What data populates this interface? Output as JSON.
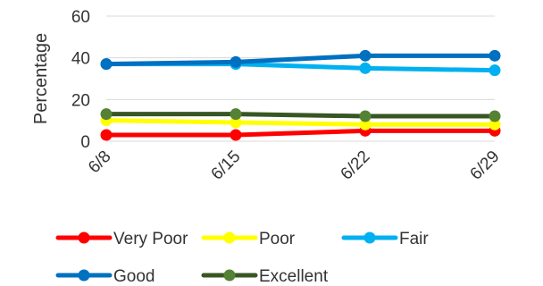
{
  "chart_data": {
    "type": "line",
    "title": "",
    "xlabel": "",
    "ylabel": "Percentage",
    "categories": [
      "6/8",
      "6/15",
      "6/22",
      "6/29"
    ],
    "ylim": [
      0,
      60
    ],
    "yticks": [
      0,
      20,
      40,
      60
    ],
    "grid": "horizontal",
    "legend_position": "bottom",
    "series": [
      {
        "name": "Very Poor",
        "color": "#ff0000",
        "values": [
          3,
          3,
          5,
          5
        ]
      },
      {
        "name": "Poor",
        "color": "#ffff00",
        "values": [
          10,
          9,
          8,
          8
        ]
      },
      {
        "name": "Fair",
        "color": "#00b0f0",
        "values": [
          37,
          37,
          35,
          34
        ]
      },
      {
        "name": "Good",
        "color": "#0070c0",
        "values": [
          37,
          38,
          41,
          41
        ]
      },
      {
        "name": "Excellent",
        "color": "#375623",
        "markerColor": "#548235",
        "values": [
          13,
          13,
          12,
          12
        ]
      }
    ]
  }
}
